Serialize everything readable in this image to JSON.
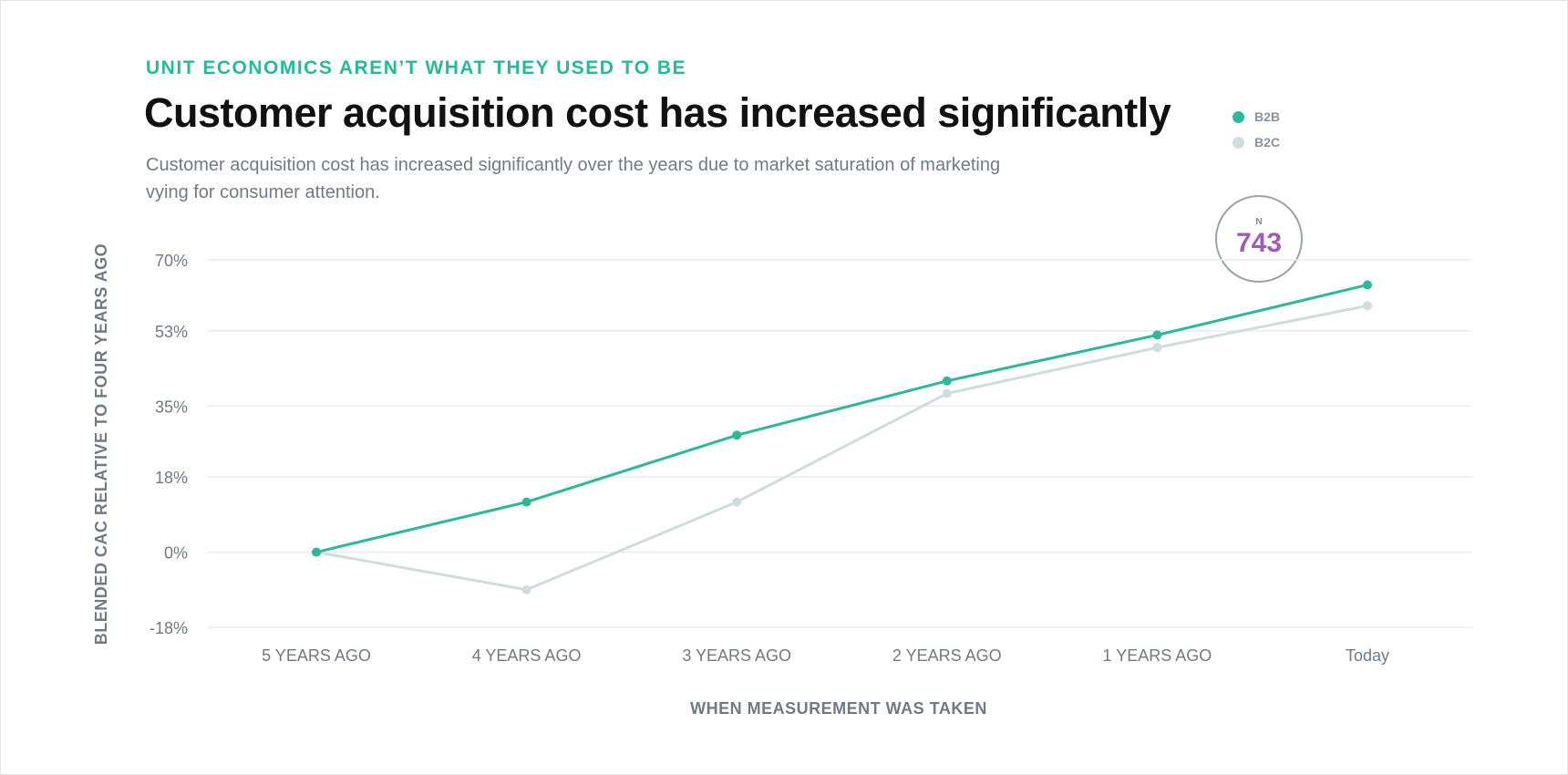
{
  "header": {
    "eyebrow": "UNIT ECONOMICS AREN’T WHAT THEY USED TO BE",
    "title": "Customer acquisition cost has increased significantly",
    "subtitle": "Customer acquisition cost has increased significantly over the years due to market saturation of marketing vying for consumer attention."
  },
  "badge": {
    "label": "N",
    "value": "743",
    "value_color": "#a05cb0"
  },
  "colors": {
    "b2b": "#2db899",
    "b2c": "#cfdde0",
    "grid": "#ececec"
  },
  "chart_data": {
    "type": "line",
    "categories": [
      "5 YEARS AGO",
      "4 YEARS AGO",
      "3 YEARS AGO",
      "2 YEARS AGO",
      "1 YEARS AGO",
      "Today"
    ],
    "series": [
      {
        "name": "B2B",
        "values": [
          0,
          12,
          28,
          41,
          52,
          64
        ]
      },
      {
        "name": "B2C",
        "values": [
          0,
          -9,
          12,
          38,
          49,
          59
        ]
      }
    ],
    "yticks": [
      -18,
      0,
      18,
      35,
      53,
      70
    ],
    "ytick_labels": [
      "-18%",
      "0%",
      "18%",
      "35%",
      "53%",
      "70%"
    ],
    "ylim": [
      -18,
      70
    ],
    "xlabel": "WHEN MEASUREMENT WAS TAKEN",
    "ylabel": "BLENDED CAC RELATIVE TO FOUR YEARS AGO",
    "legend_position": "top-right",
    "grid": true
  }
}
